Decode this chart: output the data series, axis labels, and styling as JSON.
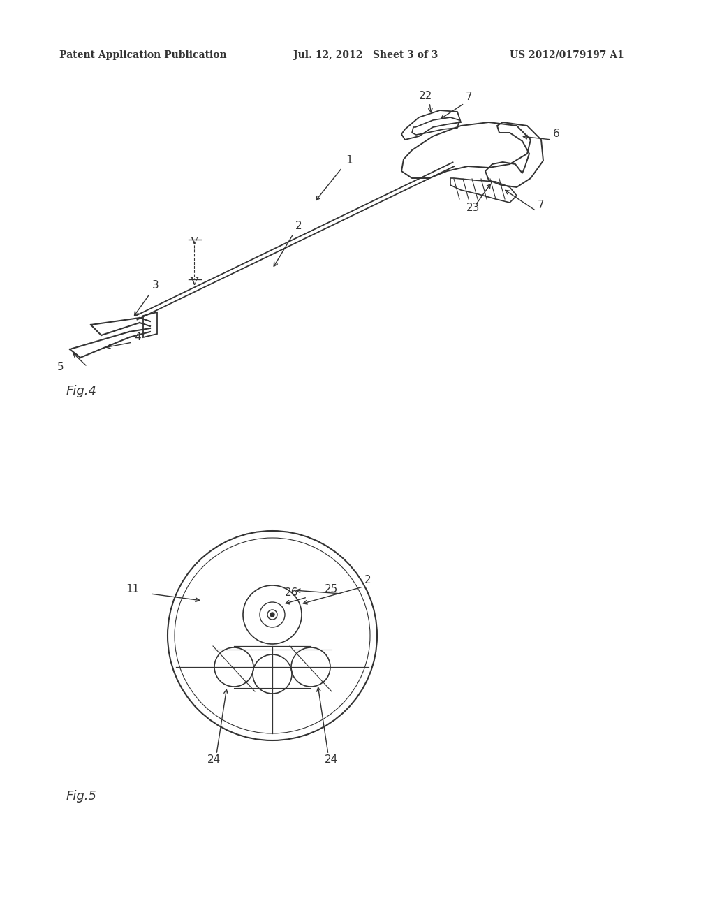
{
  "bg_color": "#ffffff",
  "header_left": "Patent Application Publication",
  "header_center": "Jul. 12, 2012   Sheet 3 of 3",
  "header_right": "US 2012/0179197 A1",
  "fig4_label": "Fig.4",
  "fig5_label": "Fig.5",
  "line_color": "#333333",
  "label_color": "#333333"
}
